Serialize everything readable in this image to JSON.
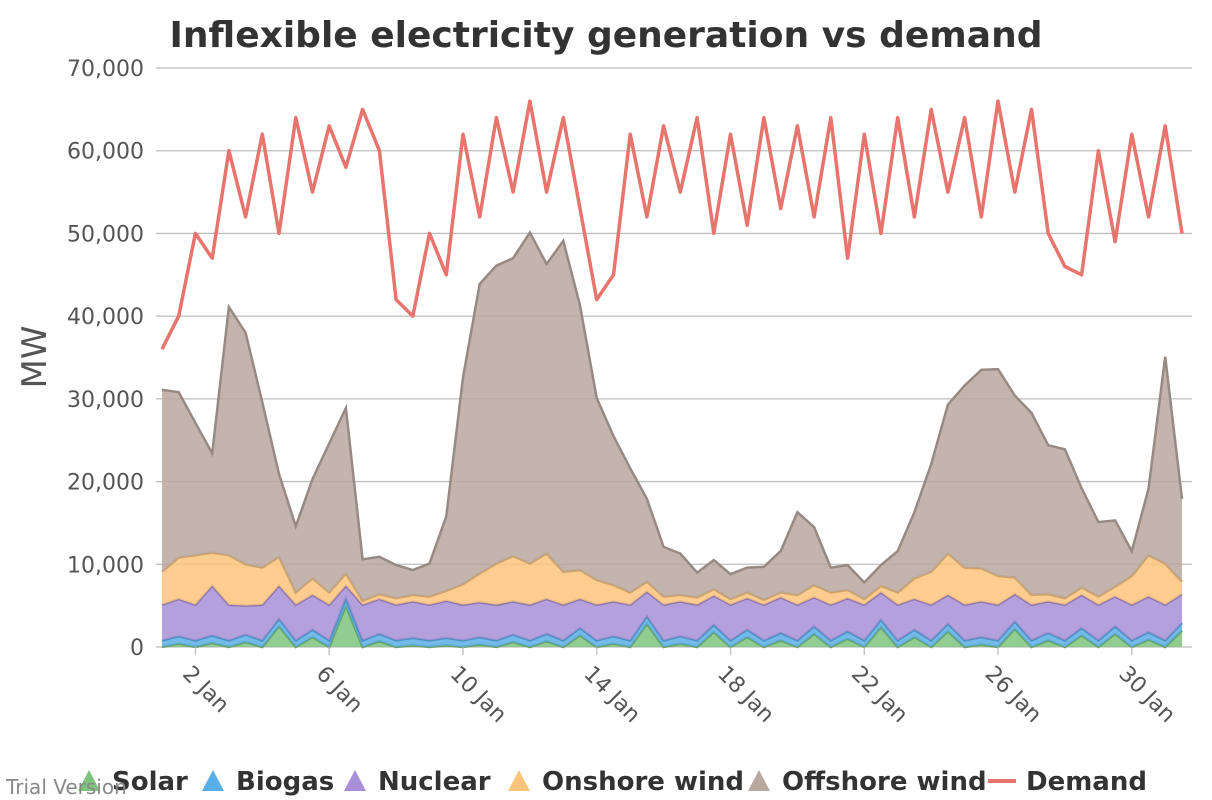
{
  "chart_data": {
    "type": "area",
    "title": "Inflexible electricity generation vs demand",
    "ylabel": "MW",
    "ylim": [
      0,
      70000
    ],
    "yticks": [
      "0",
      "10,000",
      "20,000",
      "30,000",
      "40,000",
      "50,000",
      "60,000",
      "70,000"
    ],
    "x_start": "1 Jan",
    "x_end": "31 Jan",
    "xticks": [
      {
        "day": 2,
        "label": "2 Jan"
      },
      {
        "day": 6,
        "label": "6 Jan"
      },
      {
        "day": 10,
        "label": "10 Jan"
      },
      {
        "day": 14,
        "label": "14 Jan"
      },
      {
        "day": 18,
        "label": "18 Jan"
      },
      {
        "day": 22,
        "label": "22 Jan"
      },
      {
        "day": 26,
        "label": "26 Jan"
      },
      {
        "day": 30,
        "label": "30 Jan"
      }
    ],
    "stacked": true,
    "sample_interval_days": 0.5,
    "series": [
      {
        "name": "Solar",
        "kind": "area",
        "color": "#7ec47e",
        "values": [
          0,
          400,
          0,
          500,
          0,
          600,
          0,
          2500,
          0,
          1200,
          0,
          5000,
          0,
          700,
          0,
          200,
          0,
          200,
          0,
          300,
          0,
          600,
          0,
          700,
          0,
          1400,
          0,
          400,
          0,
          2800,
          0,
          400,
          0,
          1800,
          0,
          1200,
          0,
          800,
          0,
          1600,
          0,
          1000,
          0,
          2400,
          0,
          1200,
          0,
          1900,
          0,
          300,
          0,
          2200,
          0,
          800,
          0,
          1400,
          0,
          1600,
          0,
          900,
          0,
          2000
        ]
      },
      {
        "name": "Biogas",
        "kind": "area",
        "color": "#5aaee8",
        "values": [
          800,
          900,
          800,
          900,
          800,
          900,
          800,
          900,
          800,
          900,
          800,
          900,
          800,
          900,
          800,
          900,
          800,
          900,
          800,
          900,
          800,
          900,
          800,
          900,
          800,
          900,
          800,
          900,
          800,
          900,
          800,
          900,
          800,
          900,
          800,
          900,
          800,
          900,
          800,
          900,
          800,
          900,
          800,
          900,
          800,
          900,
          800,
          900,
          800,
          900,
          800,
          900,
          800,
          900,
          800,
          900,
          800,
          900,
          800,
          900,
          800,
          900
        ]
      },
      {
        "name": "Nuclear",
        "kind": "area",
        "color": "#a88fd8",
        "values": [
          4300,
          4500,
          4300,
          6000,
          4300,
          3500,
          4300,
          4000,
          4300,
          4200,
          4300,
          1500,
          4300,
          4200,
          4300,
          4400,
          4300,
          4500,
          4300,
          4200,
          4300,
          4000,
          4300,
          4200,
          4300,
          3500,
          4300,
          4200,
          4300,
          3000,
          4300,
          4200,
          4300,
          3500,
          4300,
          3800,
          4300,
          4300,
          4300,
          3500,
          4300,
          4000,
          4300,
          3300,
          4300,
          3700,
          4300,
          3500,
          4300,
          4300,
          4300,
          3300,
          4300,
          3800,
          4300,
          4000,
          4300,
          3600,
          4300,
          4300,
          4300,
          3500
        ]
      },
      {
        "name": "Onshore wind",
        "kind": "area",
        "color": "#fdc47c",
        "values": [
          4000,
          5000,
          6000,
          4000,
          6000,
          5000,
          4500,
          3500,
          1500,
          2000,
          1500,
          1500,
          500,
          600,
          800,
          800,
          1000,
          1200,
          2500,
          3500,
          5000,
          5500,
          5000,
          5500,
          4000,
          3500,
          3000,
          2000,
          1500,
          1200,
          1000,
          800,
          900,
          800,
          700,
          700,
          600,
          600,
          1200,
          1500,
          1500,
          1000,
          700,
          800,
          1500,
          2500,
          4000,
          5000,
          4500,
          4000,
          3500,
          2000,
          1200,
          900,
          800,
          900,
          1000,
          1200,
          3500,
          5000,
          5000,
          1500
        ]
      },
      {
        "name": "Offshore wind",
        "kind": "area",
        "color": "#b8a8a0",
        "values": [
          22000,
          20000,
          16000,
          12000,
          30000,
          28000,
          20000,
          10000,
          8000,
          12000,
          18000,
          20000,
          5000,
          4500,
          4000,
          3000,
          4000,
          9000,
          25000,
          35000,
          36000,
          36000,
          40000,
          35000,
          40000,
          32000,
          22000,
          18000,
          15000,
          10000,
          6000,
          5000,
          3000,
          3500,
          3000,
          3000,
          4000,
          5000,
          10000,
          7000,
          3000,
          3000,
          2000,
          2500,
          5000,
          8000,
          13000,
          18000,
          22000,
          24000,
          25000,
          22000,
          22000,
          18000,
          18000,
          12000,
          9000,
          8000,
          3000,
          8000,
          25000,
          10000
        ]
      },
      {
        "name": "Demand",
        "kind": "line",
        "color": "#e8746e",
        "values": [
          36000,
          40000,
          50000,
          47000,
          60000,
          52000,
          62000,
          50000,
          64000,
          55000,
          63000,
          58000,
          65000,
          60000,
          42000,
          40000,
          50000,
          45000,
          62000,
          52000,
          64000,
          55000,
          66000,
          55000,
          64000,
          53000,
          42000,
          45000,
          62000,
          52000,
          63000,
          55000,
          64000,
          50000,
          62000,
          51000,
          64000,
          53000,
          63000,
          52000,
          64000,
          47000,
          62000,
          50000,
          64000,
          52000,
          65000,
          55000,
          64000,
          52000,
          66000,
          55000,
          65000,
          50000,
          46000,
          45000,
          60000,
          49000,
          62000,
          52000,
          63000,
          50000
        ]
      }
    ],
    "legend": {
      "position": "bottom",
      "items": [
        "Solar",
        "Biogas",
        "Nuclear",
        "Onshore wind",
        "Offshore wind",
        "Demand"
      ]
    },
    "grid": true
  },
  "watermark": "Trial Version"
}
